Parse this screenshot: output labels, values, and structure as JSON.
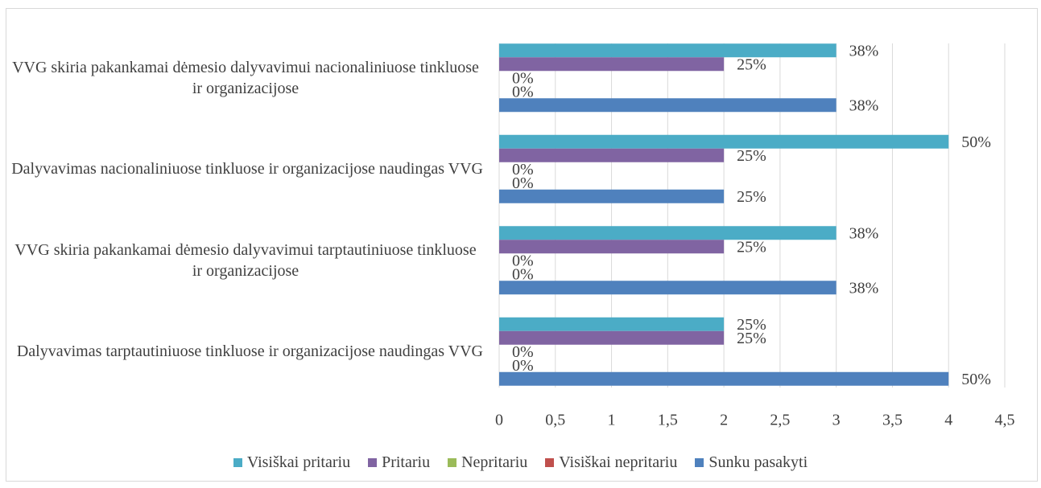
{
  "chart_data": {
    "type": "bar",
    "orientation": "horizontal",
    "categories": [
      "VVG skiria pakankamai dėmesio dalyvavimui nacionaliniuose tinkluose ir organizacijose",
      "Dalyvavimas nacionaliniuose tinkluose ir organizacijose naudingas VVG",
      "VVG skiria pakankamai dėmesio dalyvavimui tarptautiniuose tinkluose ir organizacijose",
      "Dalyvavimas tarptautiniuose tinkluose ir organizacijose naudingas VVG"
    ],
    "series": [
      {
        "name": "Visiškai pritariu",
        "color": "#4bacc6",
        "values": [
          3,
          4,
          3,
          2
        ],
        "value_labels": [
          "38%",
          "50%",
          "38%",
          "25%"
        ]
      },
      {
        "name": "Pritariu",
        "color": "#8064a2",
        "values": [
          2,
          2,
          2,
          2
        ],
        "value_labels": [
          "25%",
          "25%",
          "25%",
          "25%"
        ]
      },
      {
        "name": "Nepritariu",
        "color": "#9bbb59",
        "values": [
          0,
          0,
          0,
          0
        ],
        "value_labels": [
          "0%",
          "0%",
          "0%",
          "0%"
        ]
      },
      {
        "name": "Visiškai nepritariu",
        "color": "#c0504d",
        "values": [
          0,
          0,
          0,
          0
        ],
        "value_labels": [
          "0%",
          "0%",
          "0%",
          "0%"
        ]
      },
      {
        "name": "Sunku pasakyti",
        "color": "#4f81bd",
        "values": [
          3,
          2,
          3,
          4
        ],
        "value_labels": [
          "38%",
          "25%",
          "38%",
          "50%"
        ]
      }
    ],
    "xlim": [
      0,
      4.5
    ],
    "xticks": [
      0,
      {
        "value": 0.5,
        "label": "0,5"
      },
      1,
      {
        "value": 1.5,
        "label": "1,5"
      },
      2,
      {
        "value": 2.5,
        "label": "2,5"
      },
      3,
      {
        "value": 3.5,
        "label": "3,5"
      },
      4,
      {
        "value": 4.5,
        "label": "4,5"
      }
    ],
    "grid": true,
    "legend": "bottom"
  }
}
